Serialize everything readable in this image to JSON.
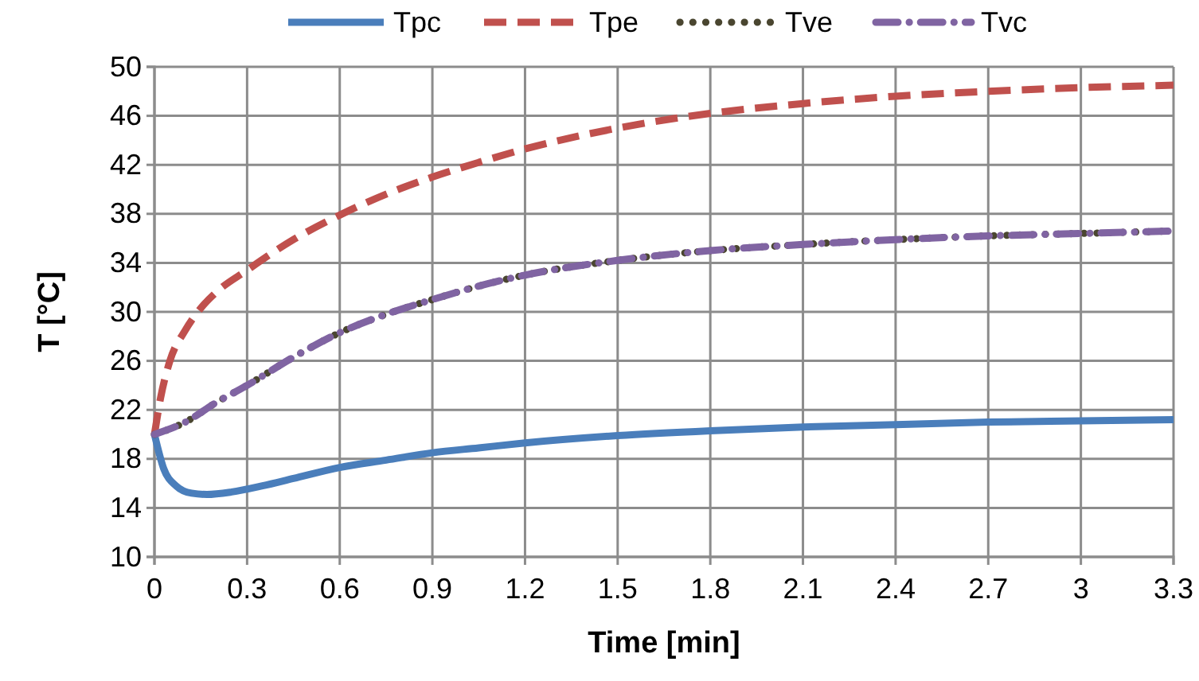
{
  "chart_data": {
    "type": "line",
    "xlabel": "Time [min]",
    "ylabel": "T [°C]",
    "xlim": [
      0,
      3.3
    ],
    "xticks": [
      0,
      0.3,
      0.6,
      0.9,
      1.2,
      1.5,
      1.8,
      2.1,
      2.4,
      2.7,
      3,
      3.3
    ],
    "ylim": [
      10,
      50
    ],
    "yticks": [
      10,
      14,
      18,
      22,
      26,
      30,
      34,
      38,
      42,
      46,
      50
    ],
    "grid": true,
    "legend": "top",
    "marker": "none",
    "series": [
      {
        "name": "Tpc",
        "color": "#4a7ebb",
        "line_style": "solid",
        "x": [
          0,
          0.03,
          0.07,
          0.12,
          0.17,
          0.25,
          0.35,
          0.45,
          0.6,
          0.75,
          0.9,
          1.05,
          1.2,
          1.5,
          1.8,
          2.1,
          2.4,
          2.7,
          3,
          3.3
        ],
        "values": [
          20,
          17.2,
          15.8,
          15.2,
          15.1,
          15.3,
          15.8,
          16.4,
          17.3,
          17.9,
          18.5,
          18.9,
          19.3,
          19.9,
          20.3,
          20.6,
          20.8,
          21,
          21.1,
          21.2
        ]
      },
      {
        "name": "Tpe",
        "color": "#c0504d",
        "line_style": "dashed",
        "x": [
          0,
          0.02,
          0.05,
          0.1,
          0.15,
          0.2,
          0.3,
          0.45,
          0.6,
          0.75,
          0.9,
          1.05,
          1.2,
          1.5,
          1.8,
          2.1,
          2.4,
          2.7,
          3,
          3.3
        ],
        "values": [
          20,
          23,
          26,
          28.5,
          30.3,
          31.6,
          33.4,
          35.9,
          37.9,
          39.6,
          41,
          42.2,
          43.3,
          45,
          46.2,
          47,
          47.6,
          48,
          48.3,
          48.5
        ]
      },
      {
        "name": "Tve",
        "color": "#4a4630",
        "line_style": "dotted",
        "x": [
          0,
          0.1,
          0.2,
          0.3,
          0.45,
          0.6,
          0.75,
          0.9,
          1.05,
          1.2,
          1.5,
          1.8,
          2.1,
          2.4,
          2.7,
          3,
          3.3
        ],
        "values": [
          20,
          21,
          22.6,
          24,
          26.3,
          28.3,
          29.8,
          31,
          32.1,
          33,
          34.2,
          35,
          35.5,
          35.9,
          36.2,
          36.4,
          36.6
        ]
      },
      {
        "name": "Tvc",
        "color": "#8064a2",
        "line_style": "dashdot",
        "x": [
          0,
          0.1,
          0.2,
          0.3,
          0.45,
          0.6,
          0.75,
          0.9,
          1.05,
          1.2,
          1.5,
          1.8,
          2.1,
          2.4,
          2.7,
          3,
          3.3
        ],
        "values": [
          20,
          21,
          22.6,
          24,
          26.3,
          28.3,
          29.8,
          31,
          32.1,
          33,
          34.2,
          35,
          35.5,
          35.9,
          36.2,
          36.4,
          36.6
        ]
      }
    ]
  }
}
